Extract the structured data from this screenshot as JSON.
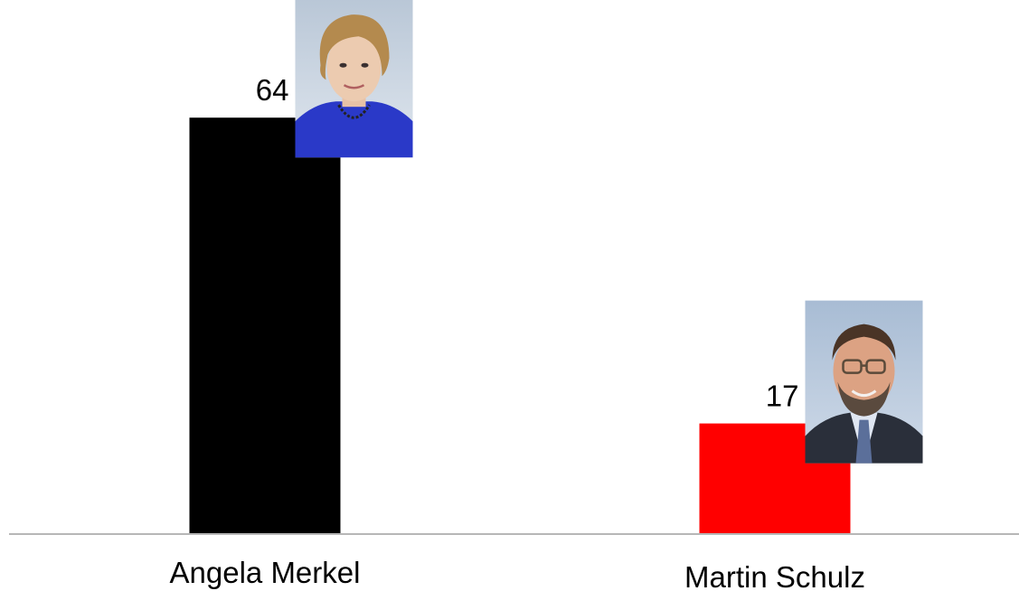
{
  "chart_data": {
    "type": "bar",
    "categories": [
      "Angela Merkel",
      "Martin Schulz"
    ],
    "values": [
      64,
      17
    ],
    "colors": [
      "#000000",
      "#ff0000"
    ],
    "data_labels": [
      "64",
      "17"
    ],
    "portraits": [
      "portrait-angela-merkel-icon",
      "portrait-martin-schulz-icon"
    ],
    "ylim": [
      0,
      70
    ],
    "grid": false,
    "legend": "none",
    "baseline_color": "#b7b7b7"
  }
}
